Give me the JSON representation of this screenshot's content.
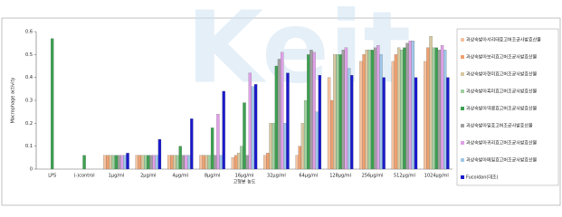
{
  "chart_data": {
    "type": "bar",
    "watermark": "Keit",
    "ylabel": "Macrophage activity",
    "xlabel": "고형분 농도",
    "categories": [
      "LPS",
      "(-)control",
      "1μg/ml",
      "2μg/ml",
      "4μg/ml",
      "8μg/ml",
      "16μg/ml",
      "32μg/ml",
      "64μg/ml",
      "128μg/ml",
      "256μg/ml",
      "512μg/ml",
      "1024μg/ml"
    ],
    "ylim": [
      0,
      0.6
    ],
    "yticks": [
      0,
      0.1,
      0.2,
      0.3,
      0.4,
      0.5,
      0.6
    ],
    "grid": false,
    "legend": "right",
    "series": [
      {
        "name": "과상숙발아서리태효고버조균사발효산물",
        "color": "#f4c2a0",
        "values": [
          null,
          null,
          0.06,
          0.06,
          0.06,
          0.06,
          0.05,
          0.06,
          0.06,
          0.4,
          0.47,
          0.47,
          0.47
        ]
      },
      {
        "name": "과상숙발아보리효고버조균사발효산물",
        "color": "#f0a070",
        "values": [
          null,
          null,
          0.06,
          0.06,
          0.06,
          0.06,
          0.06,
          0.07,
          0.1,
          0.3,
          0.5,
          0.5,
          0.53
        ]
      },
      {
        "name": "과상숙발아현미효고버조균사발효산물",
        "color": "#d8c8a0",
        "values": [
          null,
          null,
          0.06,
          0.06,
          0.06,
          0.06,
          0.07,
          0.2,
          0.2,
          0.5,
          0.52,
          0.53,
          0.58
        ]
      },
      {
        "name": "과상숙발아흑미효고버조균사발효산물",
        "color": "#a0d0a0",
        "values": [
          null,
          null,
          0.06,
          0.06,
          0.06,
          0.06,
          0.1,
          0.2,
          0.3,
          0.5,
          0.52,
          0.52,
          0.53
        ]
      },
      {
        "name": "과상숙발아약콩효고버조균사발효산물",
        "color": "#3ca050",
        "values": [
          0.57,
          0.06,
          0.06,
          0.06,
          0.1,
          0.18,
          0.29,
          0.45,
          0.5,
          0.5,
          0.52,
          0.53,
          0.53
        ]
      },
      {
        "name": "과상숙발아밀효고버조균사발효산물",
        "color": "#a0a0a0",
        "values": [
          null,
          null,
          0.06,
          0.06,
          0.06,
          0.06,
          0.06,
          0.48,
          0.52,
          0.52,
          0.53,
          0.55,
          0.52
        ]
      },
      {
        "name": "과상숙발아귀리효고버조균사발효산물",
        "color": "#e0a0e8",
        "values": [
          null,
          null,
          0.06,
          0.06,
          0.06,
          0.24,
          0.42,
          0.51,
          0.51,
          0.53,
          0.54,
          0.56,
          0.54
        ]
      },
      {
        "name": "과상숙발아메밀효고버조균사발효산물",
        "color": "#a0c8e8",
        "values": [
          null,
          null,
          0.06,
          0.06,
          0.06,
          0.06,
          0.36,
          0.2,
          0.25,
          0.44,
          0.5,
          0.56,
          0.52
        ]
      },
      {
        "name": "Fucoidan(대조)",
        "color": "#1a1acc",
        "values": [
          null,
          null,
          0.07,
          0.13,
          0.22,
          0.34,
          0.37,
          0.42,
          0.41,
          0.41,
          0.4,
          0.4,
          0.4
        ]
      }
    ]
  }
}
